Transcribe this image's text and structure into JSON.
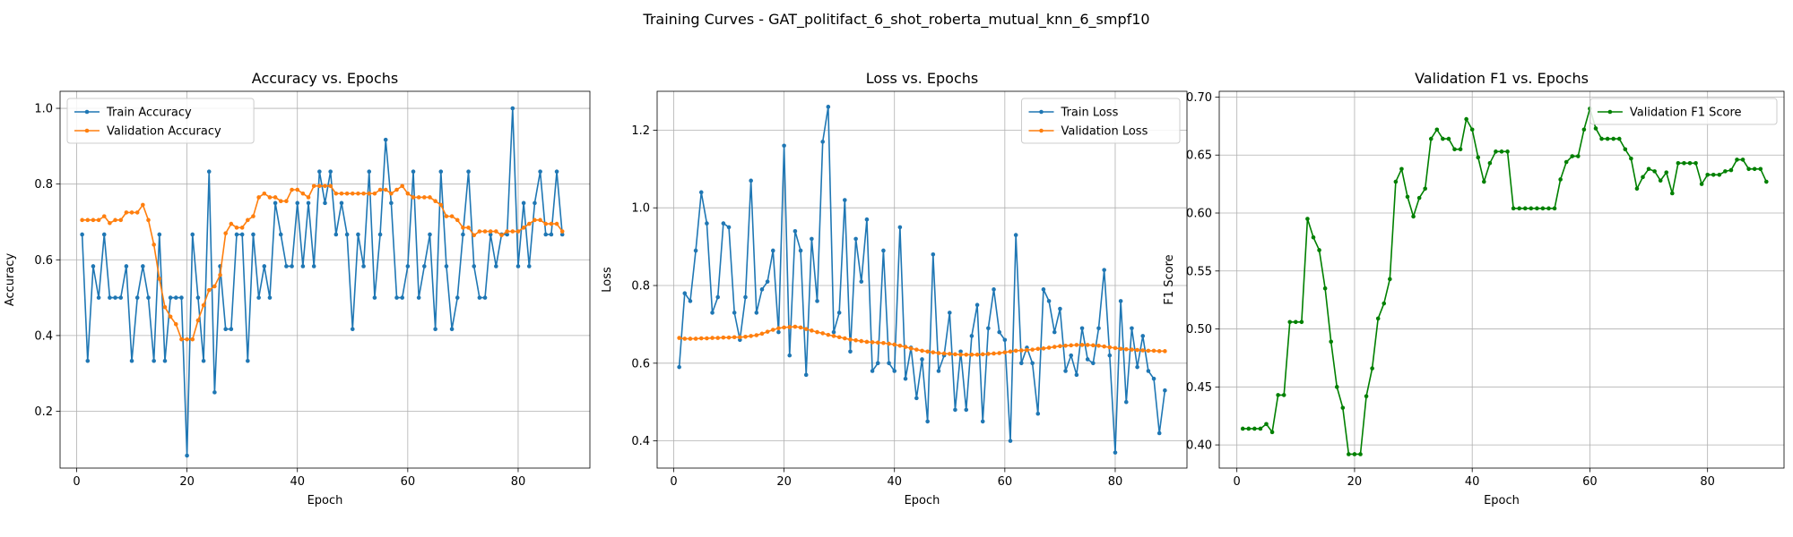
{
  "figure": {
    "suptitle": "Training Curves - GAT_politifact_6_shot_roberta_mutual_knn_6_smpf10"
  },
  "colors": {
    "blue": "#1f77b4",
    "orange": "#ff7f0e",
    "green": "#008000",
    "grid": "#b0b0b0"
  },
  "chart_data": [
    {
      "type": "line",
      "title": "Accuracy vs. Epochs",
      "xlabel": "Epoch",
      "ylabel": "Accuracy",
      "xlim": [
        -3,
        93
      ],
      "ylim": [
        0.05,
        1.045
      ],
      "xticks": [
        0,
        20,
        40,
        60,
        80
      ],
      "yticks": [
        0.2,
        0.4,
        0.6,
        0.8,
        1.0
      ],
      "ytick_labels": [
        "0.2",
        "0.4",
        "0.6",
        "0.8",
        "1.0"
      ],
      "grid": true,
      "legend": "upper-left",
      "x_start": 1,
      "series": [
        {
          "name": "Train Accuracy",
          "color": "#1f77b4",
          "values": [
            0.667,
            0.333,
            0.583,
            0.5,
            0.667,
            0.5,
            0.5,
            0.5,
            0.583,
            0.333,
            0.5,
            0.583,
            0.5,
            0.333,
            0.667,
            0.333,
            0.5,
            0.5,
            0.5,
            0.083,
            0.667,
            0.5,
            0.333,
            0.833,
            0.25,
            0.583,
            0.417,
            0.417,
            0.667,
            0.667,
            0.333,
            0.667,
            0.5,
            0.583,
            0.5,
            0.75,
            0.667,
            0.583,
            0.583,
            0.75,
            0.583,
            0.75,
            0.583,
            0.833,
            0.75,
            0.833,
            0.667,
            0.75,
            0.667,
            0.417,
            0.667,
            0.583,
            0.833,
            0.5,
            0.667,
            0.917,
            0.75,
            0.5,
            0.5,
            0.583,
            0.833,
            0.5,
            0.583,
            0.667,
            0.417,
            0.833,
            0.583,
            0.417,
            0.5,
            0.667,
            0.833,
            0.583,
            0.5,
            0.5,
            0.667,
            0.583,
            0.667,
            0.667,
            1.0,
            0.583,
            0.75,
            0.583,
            0.75,
            0.833,
            0.667,
            0.667,
            0.833,
            0.667
          ]
        },
        {
          "name": "Validation Accuracy",
          "color": "#ff7f0e",
          "values": [
            0.705,
            0.705,
            0.705,
            0.705,
            0.715,
            0.697,
            0.705,
            0.705,
            0.725,
            0.725,
            0.725,
            0.745,
            0.705,
            0.64,
            0.55,
            0.475,
            0.45,
            0.43,
            0.39,
            0.39,
            0.39,
            0.44,
            0.48,
            0.52,
            0.53,
            0.56,
            0.67,
            0.695,
            0.685,
            0.685,
            0.705,
            0.715,
            0.765,
            0.775,
            0.765,
            0.765,
            0.755,
            0.755,
            0.785,
            0.785,
            0.775,
            0.765,
            0.795,
            0.795,
            0.795,
            0.795,
            0.775,
            0.775,
            0.775,
            0.775,
            0.775,
            0.775,
            0.775,
            0.775,
            0.785,
            0.785,
            0.775,
            0.785,
            0.795,
            0.775,
            0.765,
            0.765,
            0.765,
            0.765,
            0.755,
            0.745,
            0.715,
            0.715,
            0.705,
            0.685,
            0.685,
            0.665,
            0.675,
            0.675,
            0.675,
            0.675,
            0.665,
            0.675,
            0.675,
            0.675,
            0.685,
            0.695,
            0.705,
            0.705,
            0.695,
            0.695,
            0.695,
            0.675
          ]
        }
      ]
    },
    {
      "type": "line",
      "title": "Loss vs. Epochs",
      "xlabel": "Epoch",
      "ylabel": "Loss",
      "xlim": [
        -3,
        93
      ],
      "ylim": [
        0.33,
        1.3
      ],
      "xticks": [
        0,
        20,
        40,
        60,
        80
      ],
      "yticks": [
        0.4,
        0.6,
        0.8,
        1.0,
        1.2
      ],
      "ytick_labels": [
        "0.4",
        "0.6",
        "0.8",
        "1.0",
        "1.2"
      ],
      "grid": true,
      "legend": "upper-right",
      "x_start": 1,
      "series": [
        {
          "name": "Train Loss",
          "color": "#1f77b4",
          "values": [
            0.59,
            0.78,
            0.76,
            0.89,
            1.04,
            0.96,
            0.73,
            0.77,
            0.96,
            0.95,
            0.73,
            0.66,
            0.77,
            1.07,
            0.73,
            0.79,
            0.81,
            0.89,
            0.68,
            1.16,
            0.62,
            0.94,
            0.89,
            0.57,
            0.92,
            0.76,
            1.17,
            1.26,
            0.68,
            0.73,
            1.02,
            0.63,
            0.92,
            0.81,
            0.97,
            0.58,
            0.6,
            0.89,
            0.6,
            0.58,
            0.95,
            0.56,
            0.64,
            0.51,
            0.61,
            0.45,
            0.88,
            0.58,
            0.62,
            0.73,
            0.48,
            0.63,
            0.48,
            0.67,
            0.75,
            0.45,
            0.69,
            0.79,
            0.68,
            0.66,
            0.4,
            0.93,
            0.6,
            0.64,
            0.6,
            0.47,
            0.79,
            0.76,
            0.68,
            0.74,
            0.58,
            0.62,
            0.57,
            0.69,
            0.61,
            0.6,
            0.69,
            0.84,
            0.62,
            0.37,
            0.76,
            0.5,
            0.69,
            0.59,
            0.67,
            0.58,
            0.56,
            0.42,
            0.53
          ]
        },
        {
          "name": "Validation Loss",
          "color": "#ff7f0e",
          "values": [
            0.665,
            0.663,
            0.663,
            0.663,
            0.664,
            0.664,
            0.665,
            0.665,
            0.666,
            0.666,
            0.667,
            0.667,
            0.668,
            0.67,
            0.672,
            0.676,
            0.681,
            0.686,
            0.69,
            0.692,
            0.693,
            0.694,
            0.692,
            0.688,
            0.684,
            0.68,
            0.677,
            0.673,
            0.67,
            0.667,
            0.664,
            0.661,
            0.659,
            0.657,
            0.655,
            0.654,
            0.653,
            0.652,
            0.65,
            0.648,
            0.645,
            0.642,
            0.638,
            0.635,
            0.632,
            0.63,
            0.628,
            0.626,
            0.625,
            0.624,
            0.623,
            0.622,
            0.622,
            0.622,
            0.622,
            0.623,
            0.624,
            0.625,
            0.626,
            0.628,
            0.63,
            0.632,
            0.633,
            0.634,
            0.635,
            0.637,
            0.638,
            0.64,
            0.642,
            0.644,
            0.645,
            0.646,
            0.647,
            0.647,
            0.647,
            0.646,
            0.645,
            0.643,
            0.641,
            0.639,
            0.637,
            0.636,
            0.635,
            0.634,
            0.633,
            0.632,
            0.632,
            0.631,
            0.631
          ]
        }
      ]
    },
    {
      "type": "line",
      "title": "Validation F1 vs. Epochs",
      "xlabel": "Epoch",
      "ylabel": "F1 Score",
      "xlim": [
        -3,
        93
      ],
      "ylim": [
        0.38,
        0.705
      ],
      "xticks": [
        0,
        20,
        40,
        60,
        80
      ],
      "yticks": [
        0.4,
        0.45,
        0.5,
        0.55,
        0.6,
        0.65,
        0.7
      ],
      "ytick_labels": [
        "0.40",
        "0.45",
        "0.50",
        "0.55",
        "0.60",
        "0.65",
        "0.70"
      ],
      "grid": true,
      "legend": "upper-right",
      "x_start": 1,
      "series": [
        {
          "name": "Validation F1 Score",
          "color": "#008000",
          "values": [
            0.414,
            0.414,
            0.414,
            0.414,
            0.418,
            0.411,
            0.443,
            0.443,
            0.506,
            0.506,
            0.506,
            0.595,
            0.579,
            0.568,
            0.535,
            0.489,
            0.45,
            0.432,
            0.392,
            0.392,
            0.392,
            0.442,
            0.466,
            0.509,
            0.522,
            0.543,
            0.627,
            0.638,
            0.614,
            0.597,
            0.613,
            0.621,
            0.664,
            0.672,
            0.664,
            0.664,
            0.655,
            0.655,
            0.681,
            0.672,
            0.648,
            0.627,
            0.643,
            0.653,
            0.653,
            0.653,
            0.604,
            0.604,
            0.604,
            0.604,
            0.604,
            0.604,
            0.604,
            0.604,
            0.629,
            0.644,
            0.649,
            0.649,
            0.672,
            0.69,
            0.673,
            0.664,
            0.664,
            0.664,
            0.664,
            0.655,
            0.647,
            0.621,
            0.631,
            0.638,
            0.636,
            0.628,
            0.635,
            0.617,
            0.643,
            0.643,
            0.643,
            0.643,
            0.625,
            0.633,
            0.633,
            0.633,
            0.636,
            0.637,
            0.646,
            0.646,
            0.638,
            0.638,
            0.638,
            0.627
          ]
        }
      ]
    }
  ]
}
